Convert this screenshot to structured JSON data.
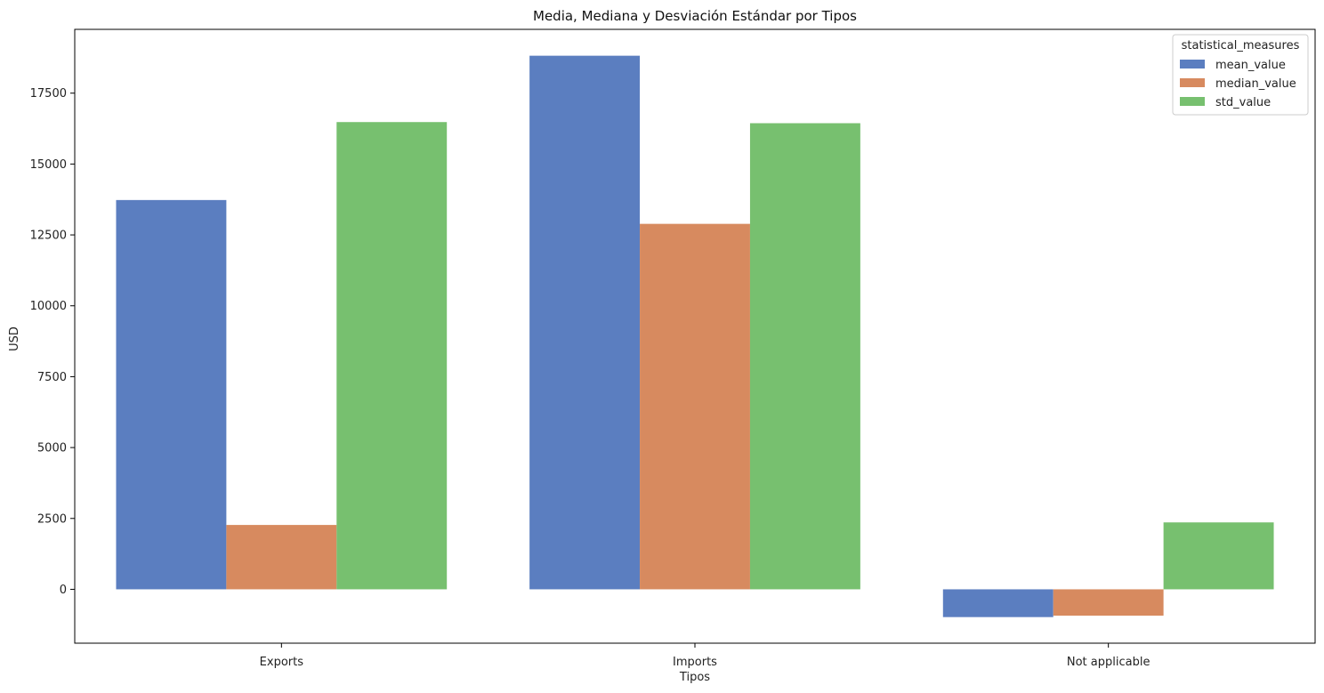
{
  "chart_data": {
    "type": "bar",
    "title": "Media, Mediana y Desviación Estándar por Tipos",
    "xlabel": "Tipos",
    "ylabel": "USD",
    "categories": [
      "Exports",
      "Imports",
      "Not applicable"
    ],
    "series": [
      {
        "name": "mean_value",
        "color": "#5b7ec0",
        "values": [
          13730,
          18820,
          -980
        ]
      },
      {
        "name": "median_value",
        "color": "#d78a5f",
        "values": [
          2270,
          12890,
          -930
        ]
      },
      {
        "name": "std_value",
        "color": "#77c06f",
        "values": [
          16480,
          16440,
          2360
        ]
      }
    ],
    "ylim": [
      -1900,
      19750
    ],
    "yticks": [
      "0",
      "2500",
      "5000",
      "7500",
      "10000",
      "12500",
      "15000",
      "17500"
    ],
    "legend": {
      "title": "statistical_measures",
      "placement": "top-right"
    },
    "grid": false
  }
}
